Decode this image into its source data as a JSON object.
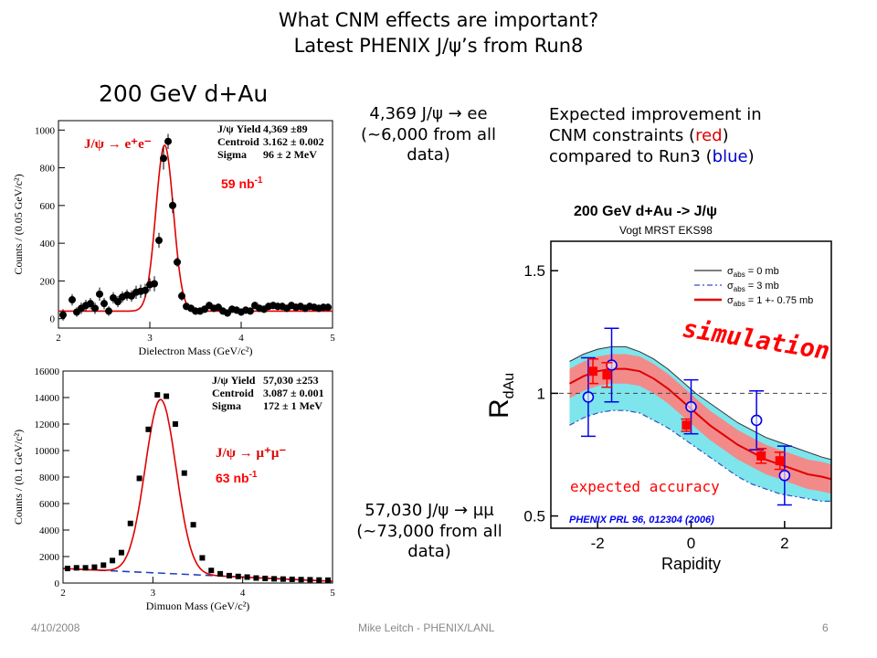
{
  "slide": {
    "title_line1": "What CNM effects are important?",
    "title_line2": "Latest PHENIX J/ψ’s from Run8",
    "subtitle": "200 GeV d+Au",
    "note_ee": "4,369 J/ψ → ee (~6,000 from all data)",
    "note_ee_line1": "4,369 J/ψ  →  ee",
    "note_ee_line2": "(~6,000 from all",
    "note_ee_line3": "data)",
    "note_mumu_line1": "57,030 J/ψ  →  μμ",
    "note_mumu_line2": "(~73,000 from all",
    "note_mumu_line3": "data)",
    "improvement_line1": "Expected improvement in",
    "improvement_line2a": "CNM constraints (",
    "improvement_red": "red",
    "improvement_line2b": ")",
    "improvement_line3a": "compared to Run3 (",
    "improvement_blue": "blue",
    "improvement_line3b": ")",
    "footer_date": "4/10/2008",
    "footer_author": "Mike Leitch - PHENIX/LANL",
    "footer_page": "6"
  },
  "colors": {
    "fit_red": "#e00000",
    "accent_red": "#ff0000",
    "data_blue": "#0000ee",
    "band_cyan": "#66e0e8",
    "band_red": "#ff8080",
    "background_dash": "#2040c0"
  },
  "chart_data": [
    {
      "type": "scatter",
      "xlabel": "Dielectron Mass (GeV/c²)",
      "ylabel": "Counts / (0.05 GeV/c²)",
      "xlim": [
        2,
        5
      ],
      "ylim": [
        -50,
        1050
      ],
      "xticks": [
        2,
        3,
        4,
        5
      ],
      "yticks": [
        0,
        200,
        400,
        600,
        800,
        1000
      ],
      "legend_channel": "J/ψ → e⁺e⁻",
      "luminosity": "59 nb",
      "luminosity_exp": "-1",
      "fit_params": [
        {
          "label": "J/ψ Yield",
          "value": "4,369 ±89"
        },
        {
          "label": "Centroid",
          "value": "3.162 ± 0.002"
        },
        {
          "label": "Sigma",
          "value": "96 ± 2 MeV"
        }
      ],
      "fit": {
        "amplitude": 880,
        "mean": 3.162,
        "sigma": 0.096,
        "baseline": 40
      },
      "points": {
        "x": [
          2.05,
          2.15,
          2.2,
          2.25,
          2.3,
          2.35,
          2.4,
          2.45,
          2.5,
          2.55,
          2.6,
          2.65,
          2.7,
          2.75,
          2.8,
          2.85,
          2.9,
          2.95,
          3.0,
          3.05,
          3.1,
          3.15,
          3.2,
          3.25,
          3.3,
          3.35,
          3.4,
          3.45,
          3.5,
          3.55,
          3.6,
          3.65,
          3.7,
          3.75,
          3.8,
          3.85,
          3.9,
          3.95,
          4.0,
          4.05,
          4.1,
          4.15,
          4.2,
          4.25,
          4.3,
          4.35,
          4.4,
          4.45,
          4.5,
          4.55,
          4.6,
          4.65,
          4.7,
          4.75,
          4.8,
          4.85,
          4.9,
          4.95
        ],
        "y": [
          20,
          100,
          35,
          55,
          70,
          80,
          55,
          130,
          80,
          40,
          110,
          90,
          115,
          125,
          120,
          140,
          145,
          150,
          180,
          185,
          415,
          850,
          940,
          600,
          300,
          120,
          65,
          55,
          40,
          40,
          50,
          70,
          55,
          60,
          40,
          30,
          50,
          45,
          35,
          45,
          40,
          70,
          55,
          50,
          65,
          70,
          65,
          65,
          55,
          70,
          60,
          65,
          55,
          65,
          60,
          55,
          60,
          60
        ],
        "err": [
          30,
          30,
          25,
          30,
          30,
          30,
          30,
          35,
          30,
          25,
          30,
          30,
          30,
          30,
          30,
          35,
          35,
          35,
          35,
          40,
          40,
          60,
          40,
          40,
          25,
          25,
          20,
          20,
          20,
          20,
          20,
          20,
          20,
          20,
          20,
          20,
          20,
          20,
          20,
          20,
          20,
          20,
          20,
          20,
          20,
          20,
          20,
          20,
          20,
          20,
          20,
          20,
          20,
          20,
          20,
          20,
          20,
          20
        ]
      }
    },
    {
      "type": "scatter",
      "xlabel": "Dimuon Mass (GeV/c²)",
      "ylabel": "Counts / (0.1 GeV/c²)",
      "xlim": [
        2,
        5
      ],
      "ylim": [
        0,
        16000
      ],
      "xticks": [
        2,
        3,
        4,
        5
      ],
      "yticks": [
        0,
        2000,
        4000,
        6000,
        8000,
        10000,
        12000,
        14000,
        16000
      ],
      "legend_channel": "J/ψ → μ⁺μ⁻",
      "luminosity": "63 nb",
      "luminosity_exp": "-1",
      "fit_params": [
        {
          "label": "J/ψ Yield",
          "value": "57,030 ±253"
        },
        {
          "label": "Centroid",
          "value": "3.087 ± 0.001"
        },
        {
          "label": "Sigma",
          "value": "172 ± 1 MeV"
        }
      ],
      "fit": {
        "amplitude": 13100,
        "mean": 3.087,
        "sigma": 0.172,
        "bg_start": 1100,
        "bg_end": 130
      },
      "points": {
        "x": [
          2.05,
          2.15,
          2.25,
          2.35,
          2.45,
          2.55,
          2.65,
          2.75,
          2.85,
          2.95,
          3.05,
          3.15,
          3.25,
          3.35,
          3.45,
          3.55,
          3.65,
          3.75,
          3.85,
          3.95,
          4.05,
          4.15,
          4.25,
          4.35,
          4.45,
          4.55,
          4.65,
          4.75,
          4.85,
          4.95
        ],
        "y": [
          1100,
          1150,
          1150,
          1200,
          1350,
          1700,
          2300,
          4500,
          7900,
          11600,
          14200,
          14100,
          12000,
          8300,
          4400,
          1900,
          950,
          700,
          560,
          500,
          450,
          380,
          350,
          320,
          300,
          280,
          260,
          250,
          230,
          220
        ]
      }
    },
    {
      "type": "line",
      "header": "200 GeV d+Au -> J/ψ",
      "subheader": "Vogt MRST EKS98",
      "xlabel": "Rapidity",
      "ylabel": "R",
      "ylabel_sub": "dAu",
      "xlim": [
        -3,
        3
      ],
      "ylim": [
        0.45,
        1.62
      ],
      "xticks": [
        -2,
        0,
        2
      ],
      "yticks": [
        0.5,
        1,
        1.5
      ],
      "reference_line": 1,
      "annotation_simulation": "simulation",
      "annotation_accuracy": "expected accuracy",
      "citation": "PHENIX PRL 96, 012304 (2006)",
      "legend": [
        {
          "symbol": "σ",
          "sub": "abs",
          "text": " = 0 mb"
        },
        {
          "symbol": "σ",
          "sub": "abs",
          "text": " = 3 mb"
        },
        {
          "symbol": "σ",
          "sub": "abs",
          "text": " = 1 +- 0.75 mb"
        }
      ],
      "curves": {
        "x": [
          -2.6,
          -2.3,
          -2.0,
          -1.7,
          -1.4,
          -1.1,
          -0.8,
          -0.5,
          -0.2,
          0.1,
          0.4,
          0.7,
          1.0,
          1.3,
          1.6,
          1.9,
          2.2,
          2.5,
          2.8,
          3.0
        ],
        "sigma_0mb": [
          1.13,
          1.16,
          1.18,
          1.19,
          1.19,
          1.17,
          1.14,
          1.1,
          1.05,
          1.0,
          0.96,
          0.92,
          0.88,
          0.85,
          0.82,
          0.8,
          0.78,
          0.76,
          0.74,
          0.73
        ],
        "sigma_3mb": [
          0.87,
          0.9,
          0.92,
          0.93,
          0.93,
          0.92,
          0.89,
          0.86,
          0.82,
          0.78,
          0.74,
          0.7,
          0.66,
          0.63,
          0.61,
          0.59,
          0.58,
          0.57,
          0.56,
          0.56
        ],
        "sigma_1mb": [
          1.04,
          1.07,
          1.09,
          1.1,
          1.1,
          1.09,
          1.06,
          1.02,
          0.97,
          0.92,
          0.87,
          0.83,
          0.79,
          0.76,
          0.73,
          0.71,
          0.69,
          0.67,
          0.66,
          0.65
        ],
        "band_red_hw": 0.06
      },
      "run3_points": {
        "x": [
          -2.2,
          -1.7,
          0.0,
          1.4,
          2.0
        ],
        "y": [
          0.985,
          1.115,
          0.945,
          0.89,
          0.665
        ],
        "err": [
          0.16,
          0.15,
          0.11,
          0.12,
          0.12
        ]
      },
      "expected_points": {
        "x": [
          -2.1,
          -1.8,
          -0.1,
          1.5,
          1.9
        ],
        "y": [
          1.09,
          1.075,
          0.87,
          0.745,
          0.725
        ],
        "err": [
          0.05,
          0.05,
          0.025,
          0.03,
          0.035
        ]
      }
    }
  ]
}
